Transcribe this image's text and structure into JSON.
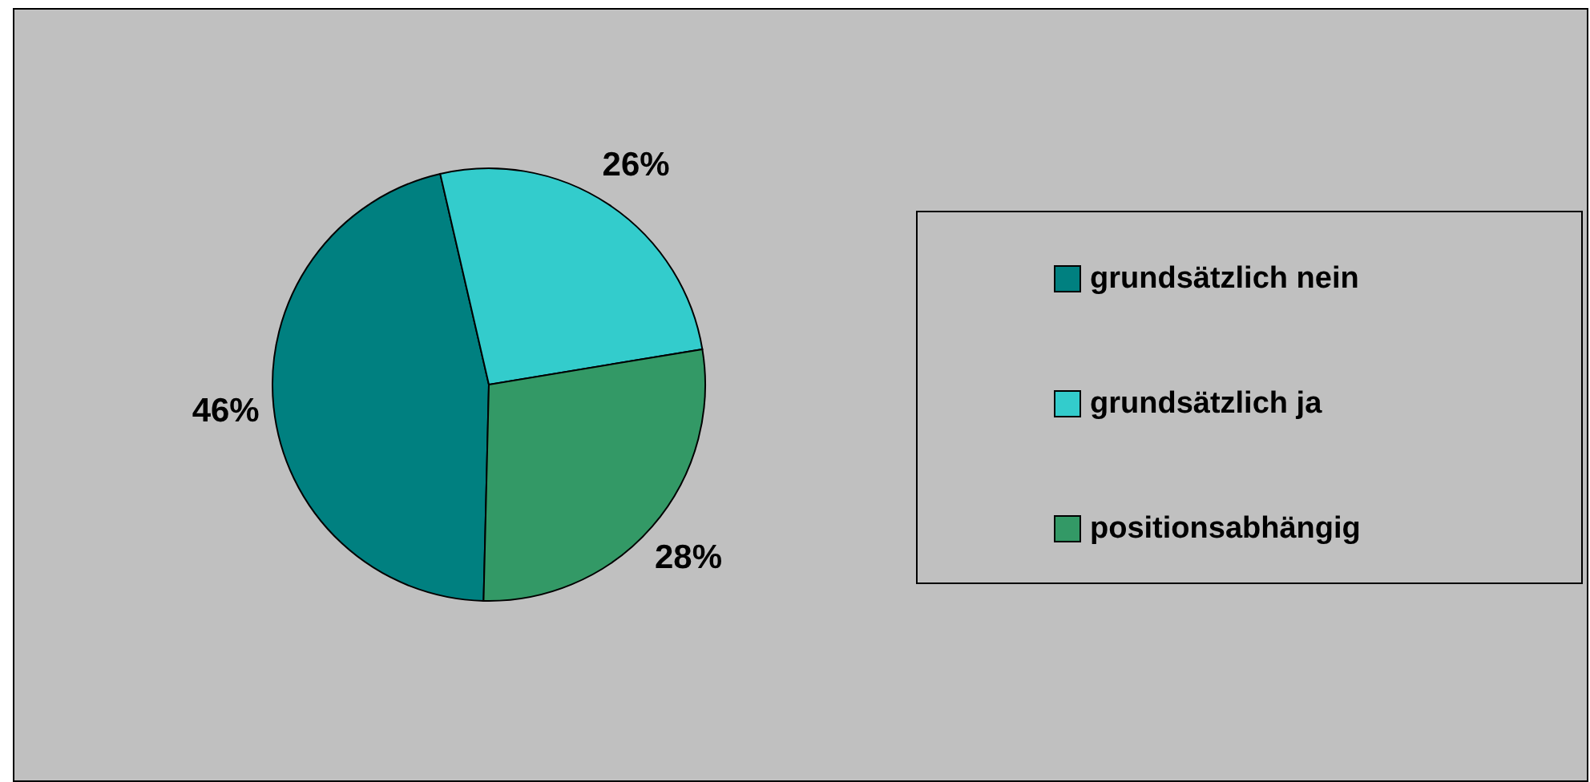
{
  "chart_data": {
    "type": "pie",
    "categories": [
      "grundsätzlich nein",
      "grundsätzlich ja",
      "positionsabhängig"
    ],
    "values": [
      46,
      26,
      28
    ],
    "colors": [
      "#008080",
      "#33cccc",
      "#339966"
    ],
    "value_labels": [
      "46%",
      "26%",
      "28%"
    ],
    "legend": "right"
  }
}
